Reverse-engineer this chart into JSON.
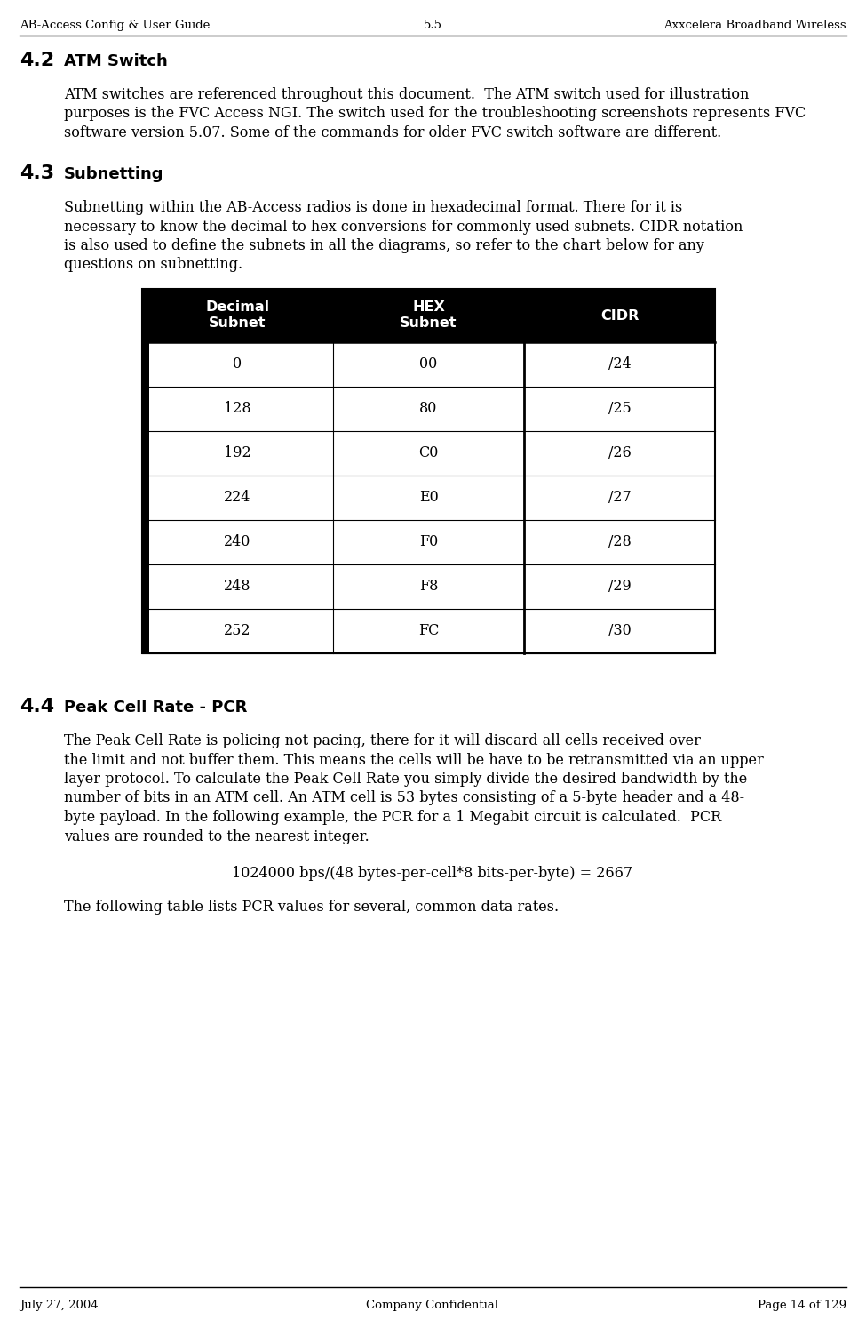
{
  "header_left": "AB-Access Config & User Guide",
  "header_center": "5.5",
  "header_right": "Axxcelera Broadband Wireless",
  "footer_left": "July 27, 2004",
  "footer_center": "Company Confidential",
  "footer_right": "Page 14 of 129",
  "section_42_num": "4.2",
  "section_42_text": "ATM Switch",
  "section_42_body1": "ATM switches are referenced throughout this document.  The ATM switch used for illustration",
  "section_42_body2": "purposes is the FVC Access NGI. The switch used for the troubleshooting screenshots represents FVC",
  "section_42_body3": "software version 5.07. Some of the commands for older FVC switch software are different.",
  "section_43_num": "4.3",
  "section_43_text": "Subnetting",
  "section_43_body1": "Subnetting within the AB-Access radios is done in hexadecimal format. There for it is",
  "section_43_body2": "necessary to know the decimal to hex conversions for commonly used subnets. CIDR notation",
  "section_43_body3": "is also used to define the subnets in all the diagrams, so refer to the chart below for any",
  "section_43_body4": "questions on subnetting.",
  "table_headers": [
    "Decimal\nSubnet",
    "HEX\nSubnet",
    "CIDR"
  ],
  "table_rows": [
    [
      "0",
      "00",
      "/24"
    ],
    [
      "128",
      "80",
      "/25"
    ],
    [
      "192",
      "C0",
      "/26"
    ],
    [
      "224",
      "E0",
      "/27"
    ],
    [
      "240",
      "F0",
      "/28"
    ],
    [
      "248",
      "F8",
      "/29"
    ],
    [
      "252",
      "FC",
      "/30"
    ]
  ],
  "section_44_num": "4.4",
  "section_44_text": "Peak Cell Rate - PCR",
  "section_44_body1": "The Peak Cell Rate is policing not pacing, there for it will discard all cells received over",
  "section_44_body2": "the limit and not buffer them. This means the cells will be have to be retransmitted via an upper",
  "section_44_body3": "layer protocol. To calculate the Peak Cell Rate you simply divide the desired bandwidth by the",
  "section_44_body4": "number of bits in an ATM cell. An ATM cell is 53 bytes consisting of a 5-byte header and a 48-",
  "section_44_body5": "byte payload. In the following example, the PCR for a 1 Megabit circuit is calculated.  PCR",
  "section_44_body6": "values are rounded to the nearest integer.",
  "formula": "1024000 bps/(48 bytes-per-cell*8 bits-per-byte) = 2667",
  "pcr_note": "The following table lists PCR values for several, common data rates.",
  "bg_color": "#ffffff",
  "text_color": "#000000",
  "table_header_bg": "#000000",
  "table_header_fg": "#ffffff",
  "table_border_color": "#000000"
}
